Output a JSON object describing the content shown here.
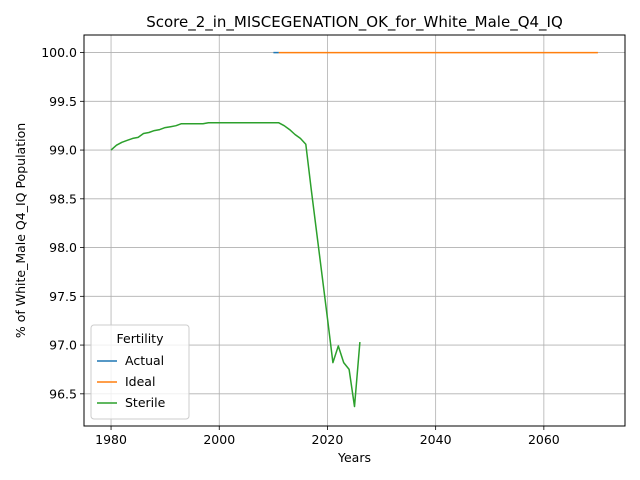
{
  "chart_data": {
    "type": "line",
    "title": "Score_2_in_MISCEGENATION_OK_for_White_Male_Q4_IQ",
    "xlabel": "Years",
    "ylabel": "% of White_Male Q4_IQ Population",
    "xlim": [
      1975,
      2075
    ],
    "ylim": [
      96.17,
      100.18
    ],
    "xticks": [
      1980,
      2000,
      2020,
      2040,
      2060
    ],
    "yticks": [
      96.5,
      97.0,
      97.5,
      98.0,
      98.5,
      99.0,
      99.5,
      100.0
    ],
    "ytick_labels": [
      "96.5",
      "97.0",
      "97.5",
      "98.0",
      "98.5",
      "99.0",
      "99.5",
      "100.0"
    ],
    "grid": true,
    "legend": {
      "title": "Fertility",
      "placement": "lower-left"
    },
    "series": [
      {
        "name": "Actual",
        "color": "#1f77b4",
        "x": [
          2010,
          2011
        ],
        "y": [
          100.0,
          100.0
        ]
      },
      {
        "name": "Ideal",
        "color": "#ff7f0e",
        "x": [
          2011,
          2020,
          2030,
          2040,
          2050,
          2060,
          2070
        ],
        "y": [
          100.0,
          100.0,
          100.0,
          100.0,
          100.0,
          100.0,
          100.0
        ]
      },
      {
        "name": "Sterile",
        "color": "#2ca02c",
        "x": [
          1980,
          1981,
          1982,
          1983,
          1984,
          1985,
          1986,
          1987,
          1988,
          1989,
          1990,
          1991,
          1992,
          1993,
          1994,
          1995,
          1996,
          1997,
          1998,
          2000,
          2005,
          2010,
          2011,
          2012,
          2013,
          2014,
          2015,
          2016,
          2017,
          2018,
          2019,
          2020,
          2021,
          2022,
          2023,
          2024,
          2025,
          2026
        ],
        "y": [
          99.0,
          99.05,
          99.08,
          99.1,
          99.12,
          99.13,
          99.17,
          99.18,
          99.2,
          99.21,
          99.23,
          99.24,
          99.25,
          99.27,
          99.27,
          99.27,
          99.27,
          99.27,
          99.28,
          99.28,
          99.28,
          99.28,
          99.28,
          99.25,
          99.21,
          99.16,
          99.12,
          99.06,
          98.6,
          98.16,
          97.72,
          97.27,
          96.82,
          96.99,
          96.82,
          96.75,
          96.37,
          97.03
        ]
      }
    ]
  }
}
